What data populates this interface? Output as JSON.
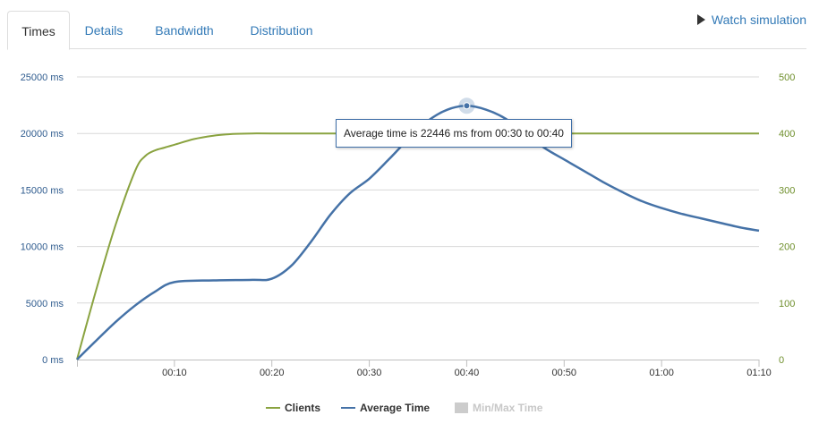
{
  "tabs": [
    {
      "label": "Times",
      "active": true
    },
    {
      "label": "Details",
      "active": false
    },
    {
      "label": "Bandwidth",
      "active": false
    },
    {
      "label": "Distribution",
      "active": false
    }
  ],
  "watch_label": "Watch simulation",
  "tooltip": "Average time is 22446 ms from 00:30 to 00:40",
  "colors": {
    "clients": "#8aa340",
    "average_time": "#4572a7",
    "min_max": "#cccccc",
    "link": "#337ab7"
  },
  "chart_data": {
    "type": "line",
    "x_ticks": [
      "00:10",
      "00:20",
      "00:30",
      "00:40",
      "00:50",
      "01:00",
      "01:10"
    ],
    "x_range_seconds": [
      0,
      70
    ],
    "y_left_ticks": [
      "0 ms",
      "5000 ms",
      "10000 ms",
      "15000 ms",
      "20000 ms",
      "25000 ms"
    ],
    "y_left_range": [
      0,
      25000
    ],
    "y_right_ticks": [
      "0",
      "100",
      "200",
      "300",
      "400",
      "500"
    ],
    "y_right_range": [
      0,
      500
    ],
    "grid": true,
    "legend_position": "bottom",
    "legend": [
      {
        "label": "Clients",
        "type": "line",
        "active": true
      },
      {
        "label": "Average Time",
        "type": "line",
        "active": true
      },
      {
        "label": "Min/Max Time",
        "type": "area",
        "active": false
      }
    ],
    "series": [
      {
        "name": "Clients",
        "axis": "right",
        "x": [
          0,
          2,
          4,
          6,
          7,
          8,
          9,
          10,
          12,
          14,
          16,
          18,
          20,
          30,
          40,
          50,
          60,
          70
        ],
        "values": [
          0,
          125,
          240,
          335,
          360,
          370,
          375,
          380,
          390,
          396,
          399,
          400,
          400,
          400,
          400,
          400,
          400,
          400
        ]
      },
      {
        "name": "Average Time",
        "axis": "left",
        "x": [
          0,
          2,
          4,
          6,
          8,
          10,
          14,
          18,
          20,
          22,
          24,
          26,
          28,
          30,
          32,
          34,
          36,
          38,
          40,
          42,
          44,
          46,
          48,
          50,
          52,
          54,
          56,
          58,
          60,
          62,
          64,
          66,
          68,
          70
        ],
        "values": [
          0,
          1700,
          3350,
          4800,
          6000,
          6850,
          7000,
          7050,
          7150,
          8300,
          10400,
          12800,
          14700,
          16000,
          17700,
          19500,
          21100,
          22100,
          22446,
          22100,
          21300,
          20000,
          18700,
          17700,
          16700,
          15700,
          14800,
          14000,
          13400,
          12900,
          12500,
          12100,
          11700,
          11400
        ]
      }
    ]
  }
}
